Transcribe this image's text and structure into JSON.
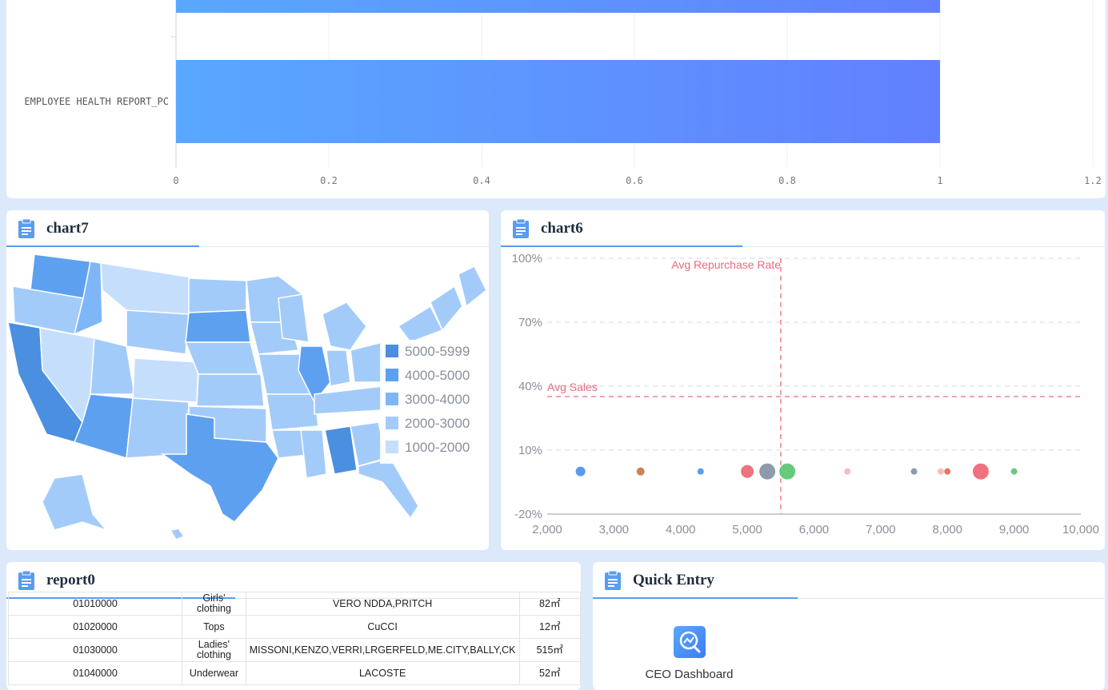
{
  "top_chart": {
    "chart_data": {
      "type": "bar",
      "orientation": "horizontal",
      "categories": [
        "",
        "EMPLOYEE HEALTH REPORT_PC"
      ],
      "values": [
        1,
        1
      ],
      "xlim": [
        0,
        1.2
      ],
      "xticks": [
        "0",
        "0.2",
        "0.4",
        "0.6",
        "0.8",
        "1",
        "1.2"
      ],
      "grid": true,
      "colors": [
        "#59a8ff",
        "#6180ff"
      ]
    }
  },
  "chart7": {
    "title": "chart7",
    "chart_data": {
      "type": "choropleth",
      "legend": [
        "5000-5999",
        "4000-5000",
        "3000-4000",
        "2000-3000",
        "1000-2000"
      ],
      "legend_colors": [
        "#4a8fe0",
        "#5ea0f0",
        "#7fb6f7",
        "#a3cbfa",
        "#c5defc"
      ],
      "legend_position": "right"
    }
  },
  "chart6": {
    "title": "chart6",
    "chart_data": {
      "type": "scatter",
      "xlim": [
        2000,
        10000
      ],
      "ylim": [
        -20,
        100
      ],
      "xticks": [
        "2,000",
        "3,000",
        "4,000",
        "5,000",
        "6,000",
        "7,000",
        "8,000",
        "9,000",
        "10,000"
      ],
      "yticks": [
        "100%",
        "70%",
        "40%",
        "10%",
        "-20%"
      ],
      "reference_lines": {
        "avg_repurchase_label": "Avg Repurchase Rate",
        "avg_sales_label": "Avg Sales"
      },
      "points": [
        {
          "x": 2500,
          "y": 0,
          "size": 6,
          "color": "#5b9bee"
        },
        {
          "x": 3400,
          "y": 0,
          "size": 5,
          "color": "#d0805a"
        },
        {
          "x": 4300,
          "y": 0,
          "size": 4,
          "color": "#5b9bee"
        },
        {
          "x": 5000,
          "y": 0,
          "size": 8,
          "color": "#ef7281"
        },
        {
          "x": 5300,
          "y": 0,
          "size": 10,
          "color": "#8e99aa"
        },
        {
          "x": 5600,
          "y": 0,
          "size": 10,
          "color": "#67c97c"
        },
        {
          "x": 6500,
          "y": 0,
          "size": 4,
          "color": "#f5bcc0"
        },
        {
          "x": 7500,
          "y": 0,
          "size": 4,
          "color": "#8e99aa"
        },
        {
          "x": 7900,
          "y": 0,
          "size": 4,
          "color": "#f5bcc0"
        },
        {
          "x": 8000,
          "y": 0,
          "size": 4,
          "color": "#e37a5e"
        },
        {
          "x": 8500,
          "y": 0,
          "size": 10,
          "color": "#ef7281"
        },
        {
          "x": 9000,
          "y": 0,
          "size": 4,
          "color": "#67c97c"
        }
      ]
    }
  },
  "report0": {
    "title": "report0",
    "rows": [
      [
        "01010000",
        "Girls' clothing",
        "VERO NDDA,PRITCH",
        "82㎡"
      ],
      [
        "01020000",
        "Tops",
        "CuCCI",
        "12㎡"
      ],
      [
        "01030000",
        "Ladies' clothing",
        "MISSONI,KENZO,VERRI,LRGERFELD,ME.CITY,BALLY,CK",
        "515㎡"
      ],
      [
        "01040000",
        "Underwear",
        "LACOSTE",
        "52㎡"
      ]
    ]
  },
  "quick_entry": {
    "title": "Quick Entry",
    "items": [
      {
        "label": "CEO Dashboard",
        "icon": "chart-search-icon"
      }
    ]
  }
}
